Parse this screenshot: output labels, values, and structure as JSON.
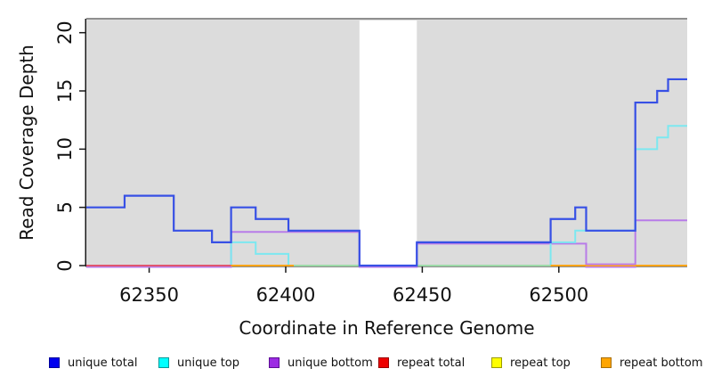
{
  "chart_data": {
    "type": "line",
    "subtype": "step",
    "title": "",
    "xlabel": "Coordinate in Reference Genome",
    "ylabel": "Read Coverage Depth",
    "xlim": [
      62327,
      62547
    ],
    "ylim": [
      0,
      21.2
    ],
    "x_ticks": [
      62350,
      62400,
      62450,
      62500
    ],
    "y_ticks": [
      0,
      5,
      10,
      15,
      20
    ],
    "grid": false,
    "legend_position": "bottom",
    "plot_bg_color": "#dcdcdc",
    "figure_bg_color": "#ffffff",
    "axis_color": "#1a1a1a",
    "top_boundary_line": {
      "y": 21.2,
      "color": "#8f8f8f"
    },
    "masked_region": {
      "x_start": 62427,
      "x_end": 62448,
      "color": "#ffffff"
    },
    "x_end": 62547,
    "series": [
      {
        "name": "unique total",
        "color": "#3750e5",
        "steps": [
          [
            62327,
            5
          ],
          [
            62341,
            6
          ],
          [
            62359,
            3
          ],
          [
            62373,
            2
          ],
          [
            62380,
            5
          ],
          [
            62389,
            4
          ],
          [
            62401,
            3
          ],
          [
            62427,
            0
          ],
          [
            62448,
            2
          ],
          [
            62497,
            4
          ],
          [
            62506,
            5
          ],
          [
            62510,
            3
          ],
          [
            62528,
            14
          ],
          [
            62536,
            15
          ],
          [
            62540,
            16
          ]
        ]
      },
      {
        "name": "unique top",
        "color": "#7ce8f0",
        "steps": [
          [
            62327,
            0
          ],
          [
            62380,
            2
          ],
          [
            62389,
            1
          ],
          [
            62401,
            0
          ],
          [
            62497,
            2
          ],
          [
            62506,
            3
          ],
          [
            62528,
            10
          ],
          [
            62536,
            11
          ],
          [
            62540,
            12
          ]
        ]
      },
      {
        "name": "unique bottom",
        "color": "#b87ce8",
        "steps": [
          [
            62327,
            0
          ],
          [
            62380,
            3
          ],
          [
            62427,
            0
          ],
          [
            62448,
            2
          ],
          [
            62510,
            0
          ],
          [
            62528,
            4
          ]
        ]
      },
      {
        "name": "repeat total",
        "color": "#e0566f",
        "steps": [
          [
            62327,
            0
          ]
        ]
      },
      {
        "name": "repeat top",
        "color": "#f5f53c",
        "steps": [
          [
            62327,
            0
          ]
        ]
      },
      {
        "name": "repeat bottom",
        "color": "#ffa417",
        "steps": [
          [
            62327,
            0
          ]
        ]
      }
    ],
    "zero_line_segments": [
      {
        "color": "#e0566f",
        "x_start": 62327,
        "x_end": 62380
      },
      {
        "color": "#ffa417",
        "x_start": 62380,
        "x_end": 62403
      },
      {
        "color": "#9cd9a8",
        "x_start": 62403,
        "x_end": 62497
      },
      {
        "color": "#ffa417",
        "x_start": 62497,
        "x_end": 62547
      },
      {
        "color": "#c07fe6",
        "x_start": 62510,
        "x_end": 62528
      }
    ]
  },
  "legend": {
    "items": [
      {
        "label": "unique total",
        "fill": "#0000ee",
        "border": "#000099"
      },
      {
        "label": "unique top",
        "fill": "#00ffff",
        "border": "#009999"
      },
      {
        "label": "unique bottom",
        "fill": "#9c2be3",
        "border": "#5c0e94"
      },
      {
        "label": "repeat total",
        "fill": "#ee0000",
        "border": "#990000"
      },
      {
        "label": "repeat top",
        "fill": "#ffff00",
        "border": "#9a9a00"
      },
      {
        "label": "repeat bottom",
        "fill": "#ffa500",
        "border": "#a86e00"
      }
    ]
  }
}
